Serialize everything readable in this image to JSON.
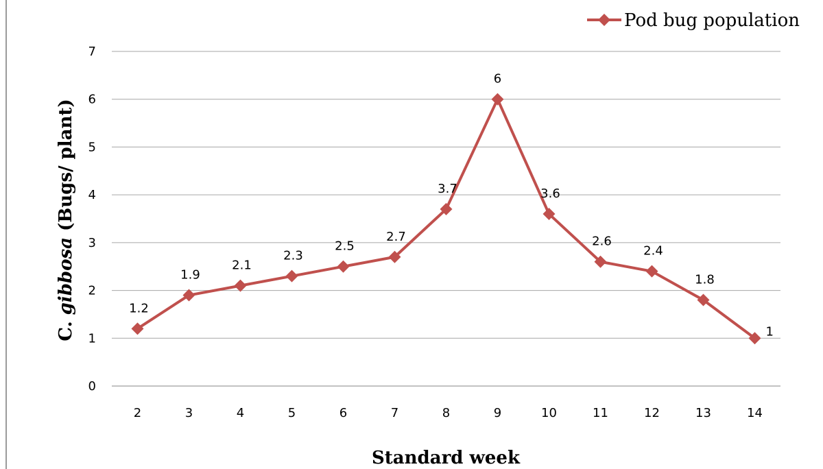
{
  "chart_data": {
    "type": "line",
    "x": [
      2,
      3,
      4,
      5,
      6,
      7,
      8,
      9,
      10,
      11,
      12,
      13,
      14
    ],
    "series": [
      {
        "name": "Pod bug population",
        "values": [
          1.2,
          1.9,
          2.1,
          2.3,
          2.5,
          2.7,
          3.7,
          6,
          3.6,
          2.6,
          2.4,
          1.8,
          1
        ],
        "color": "#C0504D",
        "marker": "diamond"
      }
    ],
    "xlabel": "Standard week",
    "ylabel_prefix": "C. ",
    "ylabel_italic": "gibbosa",
    "ylabel_suffix": " (Bugs/ plant)",
    "ylim": [
      0,
      7
    ],
    "yticks": [
      0,
      1,
      2,
      3,
      4,
      5,
      6,
      7
    ],
    "grid": "horizontal",
    "legend_position": "top-right",
    "data_labels": true
  }
}
